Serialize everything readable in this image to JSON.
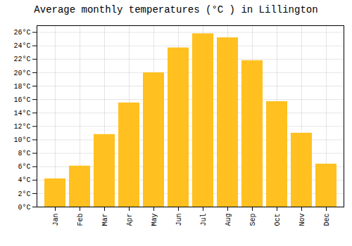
{
  "chart_data": {
    "type": "bar",
    "title": "Average monthly temperatures (°C ) in Lillington",
    "categories": [
      "Jan",
      "Feb",
      "Mar",
      "Apr",
      "May",
      "Jun",
      "Jul",
      "Aug",
      "Sep",
      "Oct",
      "Nov",
      "Dec"
    ],
    "values": [
      4.2,
      6.1,
      10.8,
      15.5,
      20.0,
      23.7,
      25.8,
      25.2,
      21.8,
      15.7,
      11.0,
      6.4
    ],
    "color": "#FFC020",
    "ylim": [
      0,
      27
    ],
    "yticks": [
      {
        "value": 0,
        "label": "0°C"
      },
      {
        "value": 2,
        "label": "2°C"
      },
      {
        "value": 4,
        "label": "4°C"
      },
      {
        "value": 6,
        "label": "6°C"
      },
      {
        "value": 8,
        "label": "8°C"
      },
      {
        "value": 10,
        "label": "10°C"
      },
      {
        "value": 12,
        "label": "12°C"
      },
      {
        "value": 14,
        "label": "14°C"
      },
      {
        "value": 16,
        "label": "16°C"
      },
      {
        "value": 18,
        "label": "18°C"
      },
      {
        "value": 20,
        "label": "20°C"
      },
      {
        "value": 22,
        "label": "22°C"
      },
      {
        "value": 24,
        "label": "24°C"
      },
      {
        "value": 26,
        "label": "26°C"
      }
    ],
    "grid": true
  }
}
